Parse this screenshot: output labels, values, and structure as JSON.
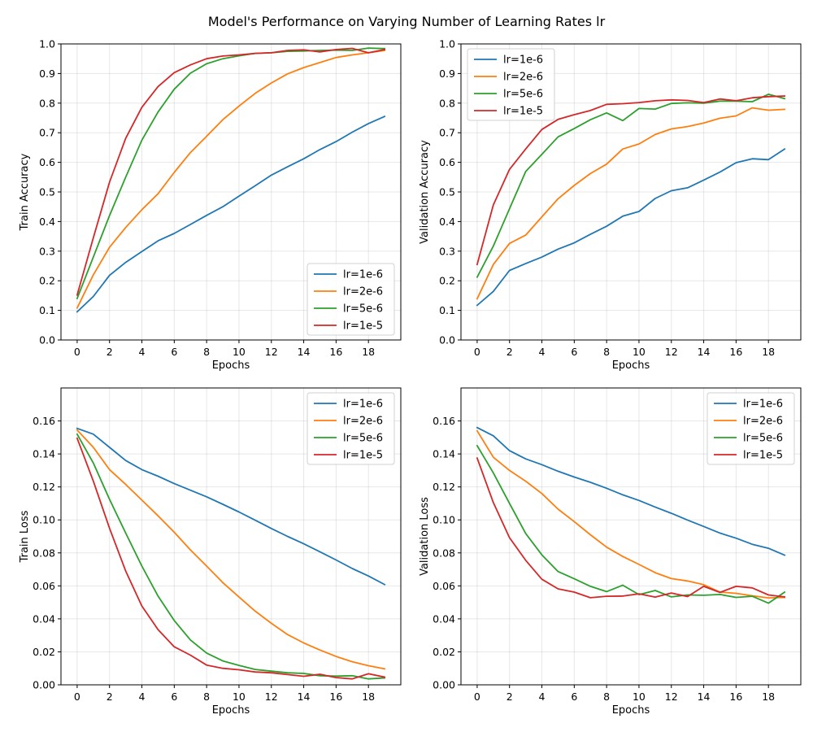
{
  "suptitle": "Model's Performance on Varying Number of Learning Rates lr",
  "colors": {
    "lr=1e-6": "#1f77b4",
    "lr=2e-6": "#ff7f0e",
    "lr=5e-6": "#2ca02c",
    "lr=1e-5": "#d62728"
  },
  "chart_data": [
    {
      "type": "line",
      "xlabel": "Epochs",
      "ylabel": "Train Accuracy",
      "xlim": [
        -1,
        20
      ],
      "ylim": [
        0,
        1.0
      ],
      "xticks": [
        0,
        2,
        4,
        6,
        8,
        10,
        12,
        14,
        16,
        18
      ],
      "yticks": [
        0.0,
        0.1,
        0.2,
        0.3,
        0.4,
        0.5,
        0.6,
        0.7,
        0.8,
        0.9,
        1.0
      ],
      "ytick_format": 1,
      "grid": true,
      "legend": "lower-right",
      "x": [
        0,
        1,
        2,
        3,
        4,
        5,
        6,
        7,
        8,
        9,
        10,
        11,
        12,
        13,
        14,
        15,
        16,
        17,
        18,
        19
      ],
      "series": [
        {
          "name": "lr=1e-6",
          "values": [
            0.095,
            0.147,
            0.218,
            0.262,
            0.299,
            0.335,
            0.36,
            0.39,
            0.421,
            0.45,
            0.486,
            0.521,
            0.557,
            0.585,
            0.612,
            0.643,
            0.67,
            0.702,
            0.731,
            0.755
          ]
        },
        {
          "name": "lr=2e-6",
          "values": [
            0.108,
            0.22,
            0.313,
            0.38,
            0.44,
            0.494,
            0.566,
            0.633,
            0.688,
            0.744,
            0.79,
            0.833,
            0.868,
            0.899,
            0.92,
            0.937,
            0.954,
            0.963,
            0.97,
            0.978
          ]
        },
        {
          "name": "lr=5e-6",
          "values": [
            0.14,
            0.28,
            0.42,
            0.55,
            0.675,
            0.77,
            0.847,
            0.901,
            0.933,
            0.95,
            0.96,
            0.968,
            0.97,
            0.975,
            0.976,
            0.978,
            0.979,
            0.978,
            0.986,
            0.984
          ]
        },
        {
          "name": "lr=1e-5",
          "values": [
            0.152,
            0.345,
            0.533,
            0.681,
            0.786,
            0.856,
            0.903,
            0.929,
            0.95,
            0.959,
            0.963,
            0.968,
            0.97,
            0.978,
            0.98,
            0.973,
            0.981,
            0.985,
            0.97,
            0.981
          ]
        }
      ]
    },
    {
      "type": "line",
      "xlabel": "Epochs",
      "ylabel": "Validation Accuracy",
      "xlim": [
        -1,
        20
      ],
      "ylim": [
        0,
        1.0
      ],
      "xticks": [
        0,
        2,
        4,
        6,
        8,
        10,
        12,
        14,
        16,
        18
      ],
      "yticks": [
        0.0,
        0.1,
        0.2,
        0.3,
        0.4,
        0.5,
        0.6,
        0.7,
        0.8,
        0.9,
        1.0
      ],
      "ytick_format": 1,
      "grid": true,
      "legend": "upper-left",
      "x": [
        0,
        1,
        2,
        3,
        4,
        5,
        6,
        7,
        8,
        9,
        10,
        11,
        12,
        13,
        14,
        15,
        16,
        17,
        18,
        19
      ],
      "series": [
        {
          "name": "lr=1e-6",
          "values": [
            0.117,
            0.164,
            0.235,
            0.258,
            0.28,
            0.307,
            0.328,
            0.357,
            0.384,
            0.418,
            0.434,
            0.478,
            0.504,
            0.514,
            0.54,
            0.567,
            0.599,
            0.612,
            0.609,
            0.645
          ]
        },
        {
          "name": "lr=2e-6",
          "values": [
            0.139,
            0.255,
            0.326,
            0.354,
            0.416,
            0.477,
            0.522,
            0.562,
            0.594,
            0.645,
            0.662,
            0.694,
            0.713,
            0.721,
            0.733,
            0.749,
            0.757,
            0.784,
            0.776,
            0.779
          ]
        },
        {
          "name": "lr=5e-6",
          "values": [
            0.212,
            0.317,
            0.443,
            0.569,
            0.627,
            0.686,
            0.714,
            0.744,
            0.767,
            0.741,
            0.782,
            0.78,
            0.799,
            0.801,
            0.8,
            0.807,
            0.807,
            0.805,
            0.83,
            0.815
          ]
        },
        {
          "name": "lr=1e-5",
          "values": [
            0.255,
            0.456,
            0.576,
            0.645,
            0.711,
            0.745,
            0.761,
            0.775,
            0.796,
            0.798,
            0.802,
            0.808,
            0.811,
            0.809,
            0.802,
            0.814,
            0.808,
            0.818,
            0.822,
            0.824
          ]
        }
      ]
    },
    {
      "type": "line",
      "xlabel": "Epochs",
      "ylabel": "Train Loss",
      "xlim": [
        -1,
        20
      ],
      "ylim": [
        0,
        0.18
      ],
      "xticks": [
        0,
        2,
        4,
        6,
        8,
        10,
        12,
        14,
        16,
        18
      ],
      "yticks": [
        0.0,
        0.02,
        0.04,
        0.06,
        0.08,
        0.1,
        0.12,
        0.14,
        0.16
      ],
      "ytick_format": 2,
      "grid": true,
      "legend": "upper-right",
      "x": [
        0,
        1,
        2,
        3,
        4,
        5,
        6,
        7,
        8,
        9,
        10,
        11,
        12,
        13,
        14,
        15,
        16,
        17,
        18,
        19
      ],
      "series": [
        {
          "name": "lr=1e-6",
          "values": [
            0.1555,
            0.152,
            0.144,
            0.136,
            0.1305,
            0.1265,
            0.122,
            0.118,
            0.114,
            0.1095,
            0.1048,
            0.0998,
            0.0948,
            0.09,
            0.0855,
            0.0807,
            0.0757,
            0.0705,
            0.066,
            0.0608
          ]
        },
        {
          "name": "lr=2e-6",
          "values": [
            0.1545,
            0.144,
            0.1305,
            0.1215,
            0.112,
            0.1025,
            0.0925,
            0.0818,
            0.072,
            0.062,
            0.0532,
            0.0447,
            0.0373,
            0.0305,
            0.0254,
            0.0211,
            0.0172,
            0.014,
            0.0116,
            0.0097
          ]
        },
        {
          "name": "lr=5e-6",
          "values": [
            0.152,
            0.1345,
            0.1125,
            0.092,
            0.072,
            0.0538,
            0.039,
            0.0272,
            0.0193,
            0.0145,
            0.0118,
            0.0093,
            0.0083,
            0.0073,
            0.0069,
            0.0055,
            0.0053,
            0.0055,
            0.0036,
            0.0042
          ]
        },
        {
          "name": "lr=1e-5",
          "values": [
            0.1495,
            0.1235,
            0.095,
            0.069,
            0.0478,
            0.0335,
            0.0231,
            0.018,
            0.012,
            0.01,
            0.0091,
            0.0078,
            0.0073,
            0.0062,
            0.0052,
            0.0064,
            0.0044,
            0.0036,
            0.0067,
            0.0047
          ]
        }
      ]
    },
    {
      "type": "line",
      "xlabel": "Epochs",
      "ylabel": "Validation Loss",
      "xlim": [
        -1,
        20
      ],
      "ylim": [
        0,
        0.18
      ],
      "xticks": [
        0,
        2,
        4,
        6,
        8,
        10,
        12,
        14,
        16,
        18
      ],
      "yticks": [
        0.0,
        0.02,
        0.04,
        0.06,
        0.08,
        0.1,
        0.12,
        0.14,
        0.16
      ],
      "ytick_format": 2,
      "grid": true,
      "legend": "upper-right",
      "x": [
        0,
        1,
        2,
        3,
        4,
        5,
        6,
        7,
        8,
        9,
        10,
        11,
        12,
        13,
        14,
        15,
        16,
        17,
        18,
        19
      ],
      "series": [
        {
          "name": "lr=1e-6",
          "values": [
            0.156,
            0.151,
            0.142,
            0.137,
            0.1335,
            0.1295,
            0.126,
            0.1228,
            0.1192,
            0.1152,
            0.1118,
            0.1078,
            0.104,
            0.0999,
            0.096,
            0.092,
            0.0889,
            0.0852,
            0.0828,
            0.0786
          ]
        },
        {
          "name": "lr=2e-6",
          "values": [
            0.154,
            0.138,
            0.13,
            0.1235,
            0.116,
            0.1065,
            0.099,
            0.091,
            0.0835,
            0.0778,
            0.073,
            0.068,
            0.0644,
            0.063,
            0.0607,
            0.0562,
            0.0555,
            0.054,
            0.0527,
            0.053
          ]
        },
        {
          "name": "lr=5e-6",
          "values": [
            0.145,
            0.1285,
            0.11,
            0.0918,
            0.0788,
            0.0687,
            0.0643,
            0.0597,
            0.0565,
            0.0604,
            0.0547,
            0.0572,
            0.0533,
            0.0545,
            0.0543,
            0.0548,
            0.053,
            0.0537,
            0.0495,
            0.0562
          ]
        },
        {
          "name": "lr=1e-5",
          "values": [
            0.1375,
            0.1105,
            0.0892,
            0.0755,
            0.064,
            0.0582,
            0.0562,
            0.0528,
            0.0537,
            0.0538,
            0.0552,
            0.0532,
            0.0557,
            0.0535,
            0.0597,
            0.056,
            0.0597,
            0.0588,
            0.0545,
            0.0533
          ]
        }
      ]
    }
  ]
}
